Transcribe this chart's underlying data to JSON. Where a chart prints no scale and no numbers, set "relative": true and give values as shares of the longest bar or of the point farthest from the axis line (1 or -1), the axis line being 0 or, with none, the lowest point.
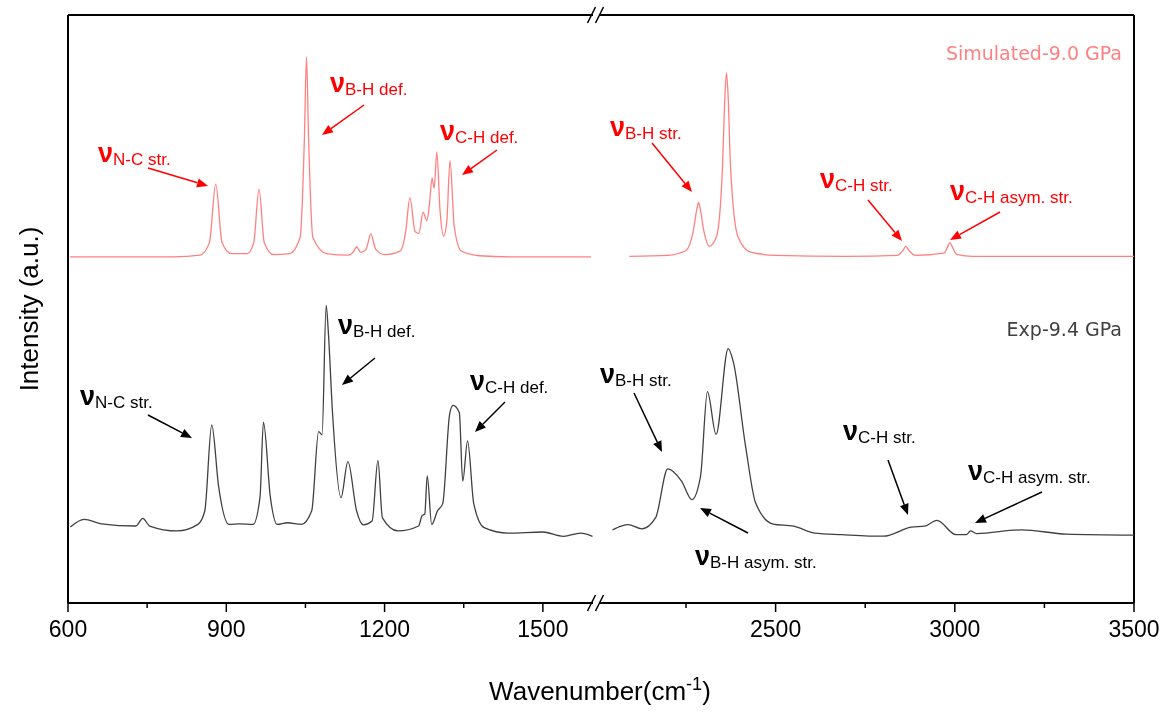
{
  "chart_data": [
    {
      "type": "line",
      "relative": true,
      "xlabel": "Wavenumber(cm$^{-1}$)",
      "ylabel": "Intensity (a.u.)",
      "xlim": [
        600,
        1595
      ],
      "xticks": [
        600,
        {
          "value": 750,
          "label": null
        },
        900,
        {
          "value": 1050,
          "label": null
        },
        1200,
        {
          "value": 1350,
          "label": null
        },
        1500
      ],
      "series": [
        {
          "color": "#ff8080",
          "x": [
            604,
            700,
            800,
            850,
            868,
            880,
            892,
            910,
            940,
            952,
            962,
            972,
            990,
            1020,
            1040,
            1048,
            1052,
            1056,
            1064,
            1090,
            1130,
            1140,
            1147,
            1155,
            1165,
            1174,
            1183,
            1200,
            1230,
            1240,
            1248,
            1258,
            1265,
            1273,
            1280,
            1285,
            1290,
            1294,
            1299,
            1305,
            1312,
            1318,
            1324,
            1332,
            1345,
            1380,
            1450,
            1591
          ],
          "values": [
            0.634,
            0.634,
            0.634,
            0.637,
            0.66,
            0.767,
            0.66,
            0.64,
            0.64,
            0.66,
            0.758,
            0.66,
            0.638,
            0.64,
            0.67,
            0.85,
            1.0,
            0.85,
            0.67,
            0.64,
            0.637,
            0.642,
            0.652,
            0.642,
            0.648,
            0.676,
            0.648,
            0.638,
            0.645,
            0.68,
            0.742,
            0.68,
            0.677,
            0.716,
            0.7,
            0.73,
            0.778,
            0.76,
            0.826,
            0.72,
            0.672,
            0.7,
            0.81,
            0.69,
            0.645,
            0.636,
            0.634,
            0.634
          ]
        },
        {
          "color": "#404040",
          "x": [
            604.4,
            630.6,
            663.3,
            728.6,
            741.7,
            754.8,
            807.0,
            846.2,
            859.3,
            872.4,
            885.5,
            905.0,
            924.7,
            950.8,
            963.9,
            970.4,
            983.5,
            996.5,
            1016.1,
            1042.3,
            1061.9,
            1075.0,
            1081.5,
            1089.3,
            1093.3,
            1101.1,
            1117.4,
            1130.5,
            1146.9,
            1159.9,
            1176.3,
            1187.4,
            1195.9,
            1225.3,
            1264.5,
            1271.0,
            1276.2,
            1280.8,
            1289.3,
            1300.4,
            1310.2,
            1323.3,
            1329.8,
            1341.6,
            1348.1,
            1357.3,
            1369.0,
            1388.6,
            1434.4,
            1499.7,
            1539.0,
            1571.6,
            1594
          ],
          "values": [
            0.139,
            0.153,
            0.145,
            0.141,
            0.155,
            0.141,
            0.132,
            0.144,
            0.169,
            0.326,
            0.213,
            0.144,
            0.145,
            0.144,
            0.194,
            0.331,
            0.194,
            0.144,
            0.147,
            0.144,
            0.169,
            0.314,
            0.308,
            0.545,
            0.498,
            0.352,
            0.193,
            0.259,
            0.169,
            0.143,
            0.15,
            0.261,
            0.156,
            0.132,
            0.141,
            0.16,
            0.163,
            0.233,
            0.144,
            0.169,
            0.182,
            0.346,
            0.362,
            0.349,
            0.223,
            0.297,
            0.182,
            0.138,
            0.128,
            0.13,
            0.122,
            0.128,
            0.122
          ]
        }
      ],
      "annotations": [
        "ν$_{N-C str.}$",
        "ν$_{B-H def.}$",
        "ν$_{C-H def.}$",
        "ν$_{N-C str.}$",
        "ν$_{B-H def.}$",
        "ν$_{C-H def.}$"
      ]
    },
    {
      "type": "line",
      "relative": true,
      "xlim": [
        2010,
        3500
      ],
      "xticks": [
        {
          "value": 2250,
          "label": null
        },
        2500,
        {
          "value": 2750,
          "label": null
        },
        3000,
        {
          "value": 3250,
          "label": null
        },
        3500
      ],
      "series": [
        {
          "name": "Simulated-9.0 GPa",
          "color": "#ff8080",
          "x": [
            2092,
            2200,
            2250,
            2270,
            2280,
            2285,
            2290,
            2300,
            2315,
            2335,
            2352,
            2358,
            2363,
            2368,
            2374,
            2395,
            2430,
            2500,
            2700,
            2840,
            2855,
            2863,
            2872,
            2890,
            2970,
            2980,
            2986,
            2993,
            3005,
            3050,
            3200,
            3500
          ],
          "values": [
            0.654,
            0.656,
            0.665,
            0.701,
            0.742,
            0.756,
            0.742,
            0.701,
            0.673,
            0.691,
            0.825,
            0.948,
            1.0,
            0.948,
            0.825,
            0.691,
            0.662,
            0.656,
            0.654,
            0.656,
            0.665,
            0.673,
            0.665,
            0.656,
            0.66,
            0.672,
            0.68,
            0.672,
            0.658,
            0.654,
            0.654,
            0.654
          ]
        },
        {
          "name": "Exp-9.4 GPa",
          "color": "#404040",
          "x": [
            2044.9,
            2069,
            2088.3,
            2126.8,
            2165.3,
            2199,
            2237.5,
            2266.4,
            2290.5,
            2309.8,
            2333.8,
            2367.6,
            2382,
            2415.7,
            2444.6,
            2492.8,
            2550.5,
            2608.3,
            2685.4,
            2801,
            2878,
            2916.5,
            2950.2,
            3003.2,
            3032.1,
            3043.7,
            3061,
            3186.2,
            3311.4,
            3500
          ],
          "values": [
            0.138,
            0.145,
            0.148,
            0.14,
            0.161,
            0.253,
            0.23,
            0.195,
            0.239,
            0.399,
            0.318,
            0.48,
            0.455,
            0.298,
            0.188,
            0.149,
            0.145,
            0.132,
            0.129,
            0.126,
            0.143,
            0.145,
            0.156,
            0.129,
            0.129,
            0.136,
            0.131,
            0.138,
            0.13,
            0.128
          ]
        }
      ],
      "annotations": [
        "ν$_{B-H str.}$",
        "ν$_{C-H str.}$",
        "ν$_{C-H asym. str.}$",
        "ν$_{B-H str.}$",
        "ν$_{B-H asym. str.}$",
        "ν$_{C-H str.}$",
        "ν$_{C-H asym. str.}$"
      ]
    }
  ]
}
